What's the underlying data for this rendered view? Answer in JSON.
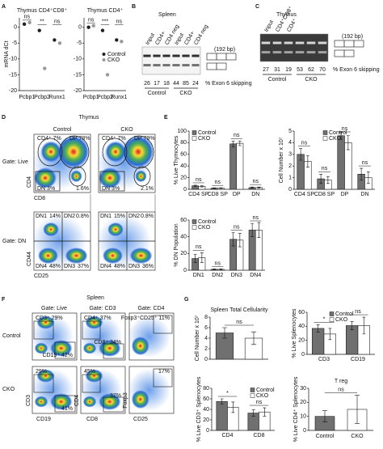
{
  "panel_letters": [
    "A",
    "B",
    "C",
    "D",
    "E",
    "F",
    "G"
  ],
  "gel_spleen": {
    "title": "Spleen",
    "lanes": [
      "Input",
      "CD4+",
      "CD4 neg",
      "Input",
      "CD4+",
      "CD4 neg"
    ],
    "percents": [
      26,
      17,
      18,
      44,
      85,
      24
    ],
    "groups": [
      "Control",
      "CKO"
    ],
    "bp": "(192 bp)",
    "caption": "% Exon 6 skipping"
  },
  "gel_thymus": {
    "title": "Thymus",
    "lanes": [
      "Input",
      "CD4⁺CD8⁺",
      "CD4⁺"
    ],
    "percents": [
      27,
      31,
      19,
      53,
      62,
      70
    ],
    "groups": [
      "Control",
      "CKO"
    ],
    "bp": "(192 bp)",
    "caption": "% Exon 6 skipping"
  },
  "flow_thymus": {
    "title": "Thymus",
    "columns": [
      "Control",
      "CKO"
    ],
    "gates": [
      "Gate: Live",
      "Gate: DN"
    ],
    "live_axes": [
      "CD8",
      "CD4"
    ],
    "dn_axes": [
      "CD25",
      "CD44"
    ],
    "live_labels": [
      [
        "CD4⁺ 7%",
        "DP 78%",
        "DN 3%",
        "1.6%"
      ],
      [
        "CD4⁺ 7%",
        "DP 79%",
        "DN 3%",
        "2.1%"
      ]
    ],
    "dn_labels": [
      [
        "DN1",
        "14%",
        "DN2",
        "0.8%",
        "DN4",
        "48%",
        "DN3",
        "37%"
      ],
      [
        "DN1",
        "15%",
        "DN2",
        "0.8%",
        "DN4",
        "48%",
        "DN3",
        "36%"
      ]
    ]
  },
  "flow_spleen": {
    "title": "Spleen",
    "gates": [
      "Gate: Live",
      "Gate: CD3",
      "Gate: CD4"
    ],
    "rows": [
      "Control",
      "CKO"
    ],
    "axes": [
      [
        "CD19",
        "CD3"
      ],
      [
        "CD8",
        "CD4"
      ],
      [
        "CD25",
        "Foxp3"
      ]
    ],
    "labels": [
      [
        "CD3⁺ 29%",
        "CD19⁺ 42%",
        "CD4⁺ 37%",
        "CD8⁺ 34%",
        "Foxp3⁺CD25⁺ 11%"
      ],
      [
        "29%",
        "41%",
        "45%",
        "37%",
        "17%"
      ]
    ]
  },
  "chart_data": [
    {
      "type": "dot",
      "title": "Thymus CD4⁺CD8⁺",
      "ylabel": "mRNA dCt",
      "categories": [
        "Pcbp1",
        "Pcbp2",
        "Runx1"
      ],
      "series": [
        {
          "color": "#222222",
          "values": [
            1,
            -1,
            -4
          ]
        },
        {
          "color": "#999999",
          "values": [
            1.5,
            -13,
            -5
          ]
        }
      ],
      "ylim": [
        -20,
        3
      ],
      "yticks": [
        0,
        -5,
        -10,
        -15,
        -20
      ],
      "annotations": [
        "ns",
        "**",
        "ns"
      ]
    },
    {
      "type": "dot",
      "title": "Thymus CD4⁺",
      "categories": [
        "Pcbp1",
        "Pcbp2",
        "Runx1"
      ],
      "series": [
        {
          "name": "Control",
          "color": "#222222",
          "values": [
            0,
            -1,
            -4
          ]
        },
        {
          "name": "CKO",
          "color": "#999999",
          "values": [
            0.5,
            -15,
            -4.5
          ]
        }
      ],
      "ylim": [
        -20,
        3
      ],
      "yticks": [
        0,
        -5,
        -10,
        -15,
        -20
      ],
      "annotations": [
        "ns",
        "***",
        "ns"
      ],
      "legend": "middle-right"
    },
    {
      "type": "bar",
      "ylabel": "% Live Thymocytes",
      "categories": [
        "CD4 SP",
        "CD8 SP",
        "DP",
        "DN"
      ],
      "series": [
        {
          "name": "Control",
          "color": "#707070",
          "values": [
            6,
            2,
            78,
            3
          ],
          "errors": [
            1,
            0.5,
            5,
            1
          ]
        },
        {
          "name": "CKO",
          "color": "#ffffff",
          "values": [
            5,
            2,
            79,
            3
          ],
          "errors": [
            1,
            0.5,
            4,
            1
          ]
        }
      ],
      "ylim": [
        0,
        100
      ],
      "yticks": [
        0,
        20,
        40,
        60,
        80,
        100
      ],
      "annotations": [
        "ns",
        "ns",
        "ns",
        "ns"
      ],
      "legend": "top-left"
    },
    {
      "type": "bar",
      "ylabel": "Cell Number x 10⁷",
      "categories": [
        "CD4 SP",
        "CD8 SP",
        "DP",
        "DN"
      ],
      "series": [
        {
          "name": "Control",
          "color": "#707070",
          "values": [
            3.0,
            0.9,
            4.6,
            1.3
          ],
          "errors": [
            0.5,
            0.4,
            0.3,
            0.5
          ]
        },
        {
          "name": "CKO",
          "color": "#ffffff",
          "values": [
            2.4,
            0.8,
            4.0,
            1.0
          ],
          "errors": [
            0.5,
            0.3,
            0.6,
            0.5
          ]
        }
      ],
      "ylim": [
        0,
        5
      ],
      "yticks": [
        0,
        1,
        2,
        3,
        4,
        5
      ],
      "annotations": [
        "ns",
        "ns",
        "ns",
        "ns"
      ],
      "legend": "top-center"
    },
    {
      "type": "bar",
      "ylabel": "% DN Population",
      "categories": [
        "DN1",
        "DN2",
        "DN3",
        "DN4"
      ],
      "series": [
        {
          "name": "Control",
          "color": "#707070",
          "values": [
            14,
            1,
            37,
            48
          ],
          "errors": [
            5,
            0.5,
            8,
            8
          ]
        },
        {
          "name": "CKO",
          "color": "#ffffff",
          "values": [
            15,
            1,
            36,
            48
          ],
          "errors": [
            6,
            0.5,
            8,
            9
          ]
        }
      ],
      "ylim": [
        0,
        60
      ],
      "yticks": [
        0,
        20,
        40,
        60
      ],
      "annotations": [
        "ns",
        "ns",
        "ns",
        "ns"
      ],
      "legend": "top-left"
    },
    {
      "type": "bar",
      "title": "Spleen Total Cellularity",
      "ylabel": "Cell Number x 10⁷",
      "values": [
        5,
        4
      ],
      "errors": [
        1,
        1.2
      ],
      "colors": [
        "#707070",
        "#ffffff"
      ],
      "ylim": [
        0,
        8
      ],
      "yticks": [
        0,
        2,
        4,
        6,
        8
      ],
      "annotations": [
        "ns"
      ]
    },
    {
      "type": "bar",
      "ylabel": "% Live Splenocytes",
      "categories": [
        "CD3",
        "CD19"
      ],
      "series": [
        {
          "name": "Control",
          "color": "#707070",
          "values": [
            37,
            41
          ],
          "errors": [
            5,
            6
          ]
        },
        {
          "name": "CKO",
          "color": "#ffffff",
          "values": [
            29,
            41
          ],
          "errors": [
            8,
            12
          ]
        }
      ],
      "ylim": [
        0,
        60
      ],
      "yticks": [
        0,
        20,
        40,
        60
      ],
      "annotations": [
        "*",
        "ns"
      ],
      "legend": "top-center"
    },
    {
      "type": "bar",
      "ylabel": "% Live CD3⁺ Splenocytes",
      "categories": [
        "CD4",
        "CD8"
      ],
      "series": [
        {
          "name": "Control",
          "color": "#707070",
          "values": [
            55,
            33
          ],
          "errors": [
            5,
            6
          ]
        },
        {
          "name": "CKO",
          "color": "#ffffff",
          "values": [
            44,
            35
          ],
          "errors": [
            10,
            8
          ]
        }
      ],
      "ylim": [
        0,
        80
      ],
      "yticks": [
        0,
        20,
        40,
        60,
        80
      ],
      "annotations": [
        "*",
        "ns"
      ],
      "legend": "top-right"
    },
    {
      "type": "bar",
      "title": "T reg",
      "ylabel": "% Live CD4⁺ Splenocytes",
      "categories": [
        "Control",
        "CKO"
      ],
      "values": [
        10,
        15
      ],
      "errors": [
        4,
        10
      ],
      "colors": [
        "#707070",
        "#ffffff"
      ],
      "ylim": [
        0,
        30
      ],
      "yticks": [
        0,
        10,
        20,
        30
      ],
      "annotations": [
        "ns"
      ]
    }
  ]
}
